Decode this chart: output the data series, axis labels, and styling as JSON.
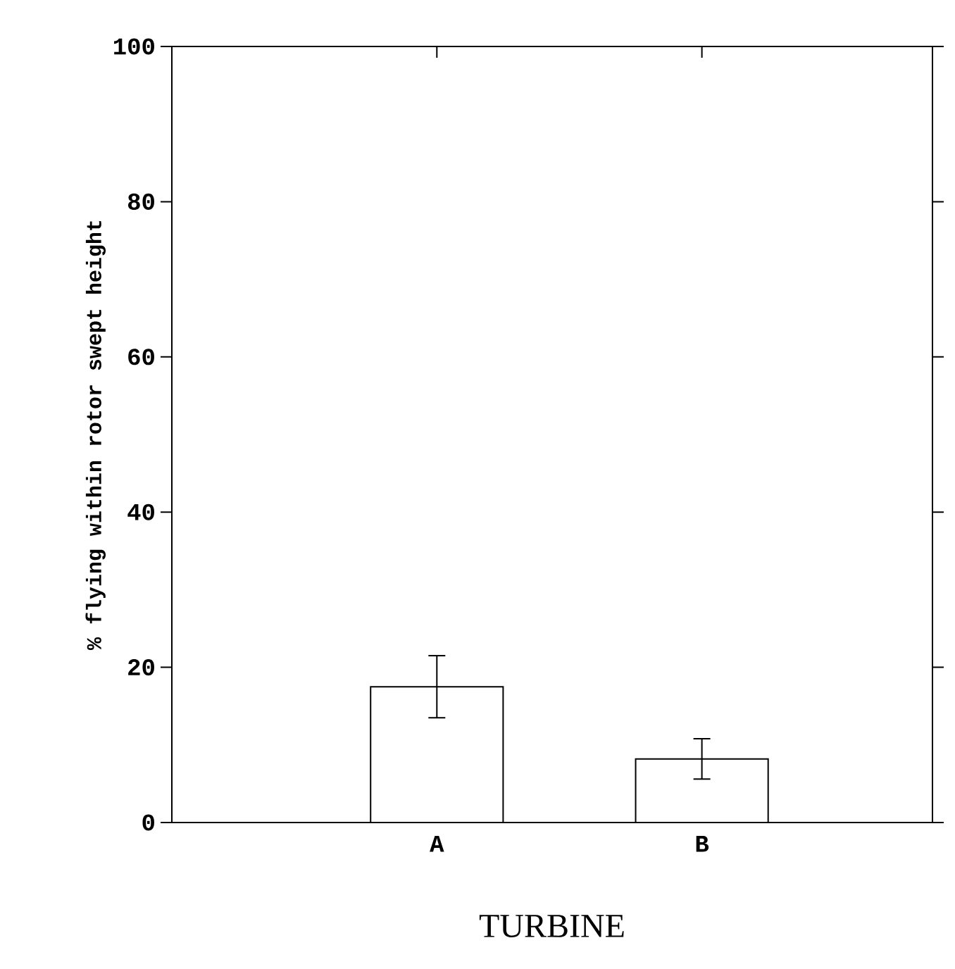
{
  "chart_data": {
    "type": "bar",
    "xlabel": "TURBINE",
    "ylabel": "% flying within rotor swept height",
    "categories": [
      "A",
      "B"
    ],
    "values": [
      17.5,
      8.2
    ],
    "errors": [
      4.0,
      2.6
    ],
    "color": "#ffffff",
    "ylim": [
      0,
      100
    ],
    "yticks": [
      0,
      20,
      40,
      60,
      80,
      100
    ],
    "grid": false
  }
}
